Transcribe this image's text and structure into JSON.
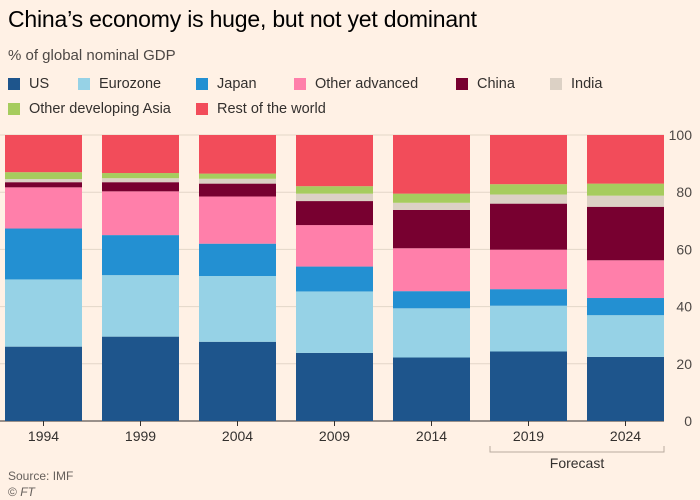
{
  "title": "China’s economy is huge, but not yet dominant",
  "subtitle": "% of global nominal GDP",
  "source": "Source: IMF",
  "copyright": "© ",
  "copyright_brand": "FT",
  "forecast_label": "Forecast",
  "legend": [
    {
      "name": "US",
      "color": "#1e558c"
    },
    {
      "name": "Eurozone",
      "color": "#96d2e6"
    },
    {
      "name": "Japan",
      "color": "#2390d2"
    },
    {
      "name": "Other advanced",
      "color": "#ff7faa"
    },
    {
      "name": "China",
      "color": "#780030"
    },
    {
      "name": "India",
      "color": "#dcd1c5"
    },
    {
      "name": "Other developing Asia",
      "color": "#a6cc5e"
    },
    {
      "name": "Rest of the world",
      "color": "#f24c5a"
    }
  ],
  "chart_data": {
    "type": "bar",
    "stacked": true,
    "categories": [
      "1994",
      "1999",
      "2004",
      "2009",
      "2014",
      "2019",
      "2024"
    ],
    "forecast_categories": [
      "2019",
      "2024"
    ],
    "ylim": [
      0,
      100
    ],
    "yticks": [
      0,
      20,
      40,
      60,
      80,
      100
    ],
    "y_axis_position": "right",
    "grid": true,
    "series": [
      {
        "name": "US",
        "color": "#1e558c",
        "values": [
          26,
          29.5,
          27.7,
          23.8,
          22.2,
          24.3,
          22.4
        ]
      },
      {
        "name": "Eurozone",
        "color": "#96d2e6",
        "values": [
          23.5,
          21.5,
          23,
          21.5,
          17.2,
          16,
          14.6
        ]
      },
      {
        "name": "Japan",
        "color": "#2390d2",
        "values": [
          17.8,
          14,
          11.3,
          8.7,
          6,
          5.8,
          6
        ]
      },
      {
        "name": "Other advanced",
        "color": "#ff7faa",
        "values": [
          14.4,
          15.3,
          16.5,
          14.5,
          15,
          13.8,
          13.2
        ]
      },
      {
        "name": "China",
        "color": "#780030",
        "values": [
          1.8,
          3.2,
          4.5,
          8.4,
          13.4,
          16.1,
          18.7
        ]
      },
      {
        "name": "India",
        "color": "#dcd1c5",
        "values": [
          1.1,
          1.4,
          1.7,
          2.6,
          2.5,
          3.2,
          3.9
        ]
      },
      {
        "name": "Other developing Asia",
        "color": "#a6cc5e",
        "values": [
          2.4,
          1.8,
          1.8,
          2.6,
          3.2,
          3.6,
          4.2
        ]
      },
      {
        "name": "Rest of the world",
        "color": "#f24c5a",
        "values": [
          13,
          13.3,
          13.5,
          17.9,
          20.5,
          17.2,
          17
        ]
      }
    ]
  }
}
